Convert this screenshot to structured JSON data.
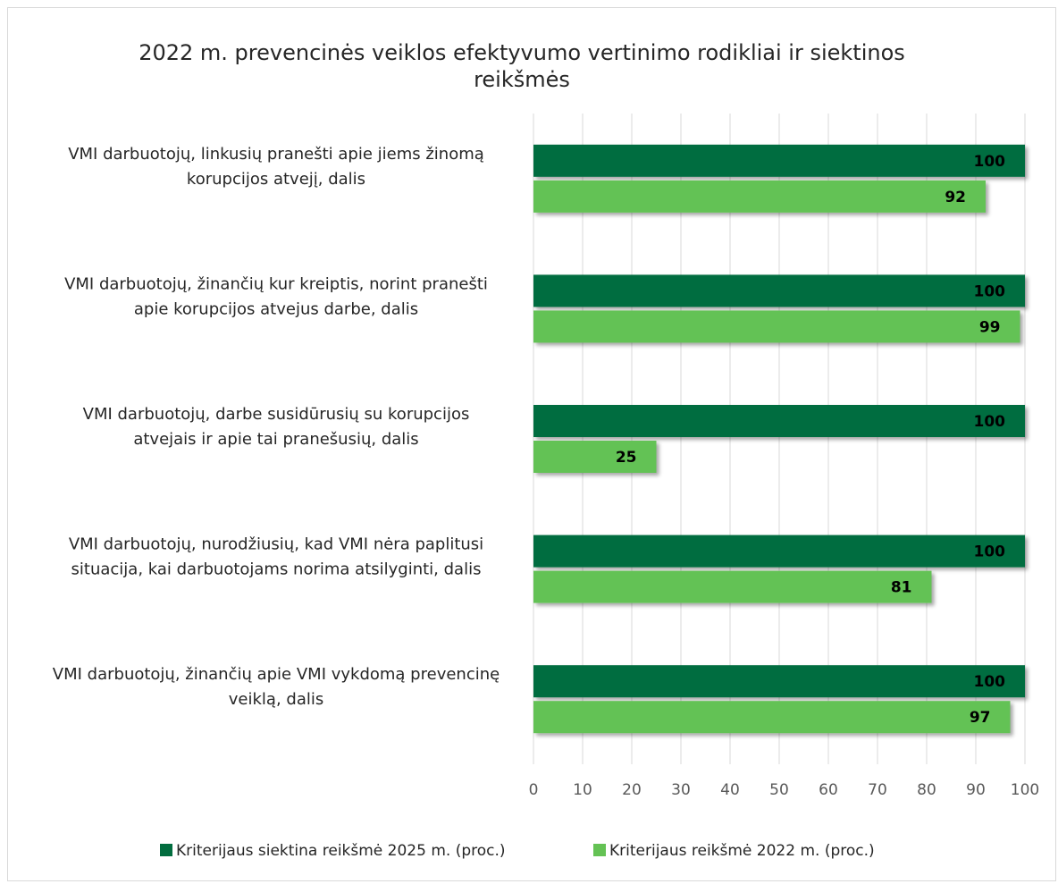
{
  "chart_data": {
    "type": "bar",
    "orientation": "horizontal",
    "title": "2022 m. prevencinės veiklos efektyvumo vertinimo rodikliai ir siektinos reikšmės",
    "title_lines": [
      "2022 m. prevencinės veiklos efektyvumo vertinimo rodikliai ir siektinos",
      "reikšmės"
    ],
    "categories": [
      [
        "VMI darbuotojų, linkusių pranešti apie jiems žinomą",
        "korupcijos atvejį, dalis"
      ],
      [
        "VMI darbuotojų, žinančių kur kreiptis, norint pranešti",
        "apie korupcijos atvejus darbe, dalis"
      ],
      [
        "VMI darbuotojų, darbe susidūrusių su korupcijos",
        "atvejais ir apie tai pranešusių, dalis"
      ],
      [
        "VMI darbuotojų, nurodžiusių, kad VMI nėra paplitusi",
        "situacija, kai darbuotojams norima atsilyginti, dalis"
      ],
      [
        "VMI darbuotojų, žinančių apie VMI vykdomą prevencinę",
        "veiklą, dalis"
      ]
    ],
    "series": [
      {
        "name": "Kriterijaus siektina reikšmė 2025 m. (proc.)",
        "color": "#026d3f",
        "values": [
          100,
          100,
          100,
          100,
          100
        ]
      },
      {
        "name": "Kriterijaus reikšmė 2022 m. (proc.)",
        "color": "#64c254",
        "values": [
          92,
          99,
          25,
          81,
          97
        ]
      }
    ],
    "xlim": [
      0,
      100
    ],
    "xticks": [
      0,
      10,
      20,
      30,
      40,
      50,
      60,
      70,
      80,
      90,
      100
    ],
    "grid": true,
    "legend_position": "bottom",
    "data_labels": true
  }
}
